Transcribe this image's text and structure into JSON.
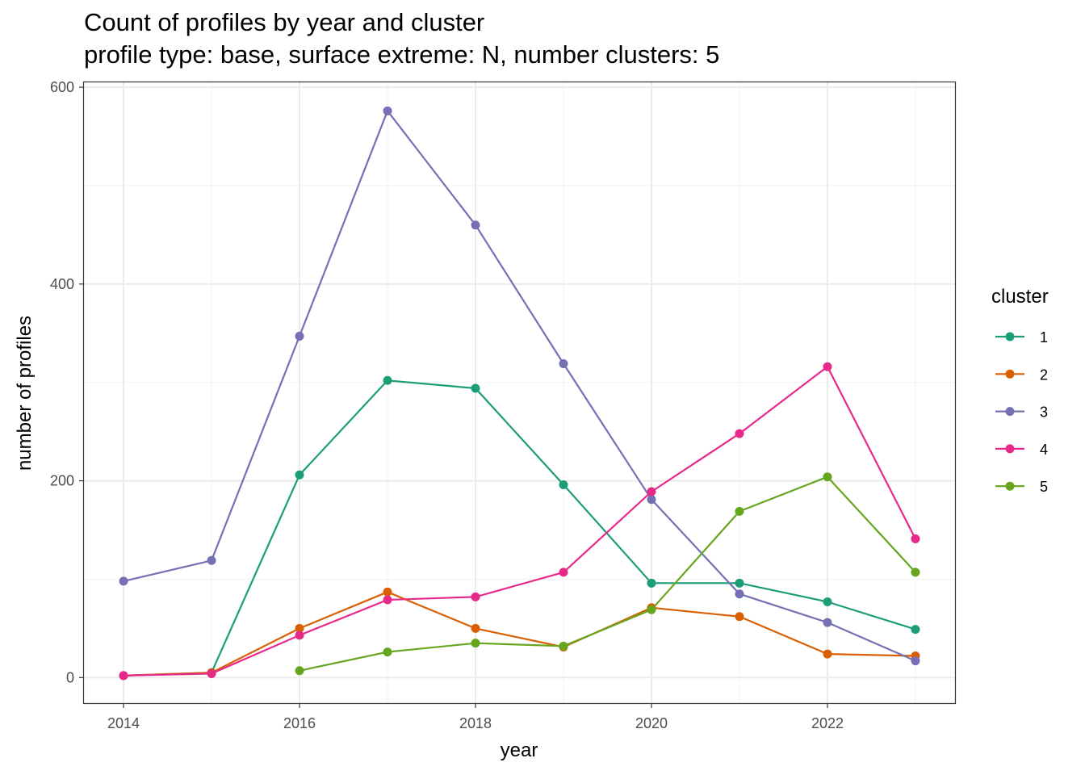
{
  "chart_data": {
    "type": "line",
    "title": "Count of profiles by year and cluster",
    "subtitle": "profile type: base, surface extreme: N, number clusters: 5",
    "xlabel": "year",
    "ylabel": "number of profiles",
    "xlim": [
      2013.55,
      2023.45
    ],
    "ylim": [
      -26,
      605
    ],
    "xticks": [
      2014,
      2016,
      2018,
      2020,
      2022
    ],
    "yticks": [
      0,
      200,
      400,
      600
    ],
    "grid": true,
    "legend_title": "cluster",
    "legend_position": "right",
    "series": [
      {
        "name": "1",
        "color": "#1b9e77",
        "x": [
          2014,
          2015,
          2016,
          2017,
          2018,
          2019,
          2020,
          2021,
          2022,
          2023
        ],
        "y": [
          2,
          5,
          206,
          302,
          294,
          196,
          96,
          96,
          77,
          49
        ]
      },
      {
        "name": "2",
        "color": "#d95f02",
        "x": [
          2014,
          2015,
          2016,
          2017,
          2018,
          2019,
          2020,
          2021,
          2022,
          2023
        ],
        "y": [
          2,
          5,
          50,
          87,
          50,
          31,
          71,
          62,
          24,
          22
        ]
      },
      {
        "name": "3",
        "color": "#7570b3",
        "x": [
          2014,
          2015,
          2016,
          2017,
          2018,
          2019,
          2020,
          2021,
          2022,
          2023
        ],
        "y": [
          98,
          119,
          347,
          576,
          460,
          319,
          181,
          85,
          56,
          17
        ]
      },
      {
        "name": "4",
        "color": "#e7298a",
        "x": [
          2014,
          2015,
          2016,
          2017,
          2018,
          2019,
          2020,
          2021,
          2022,
          2023
        ],
        "y": [
          2,
          4,
          43,
          79,
          82,
          107,
          189,
          248,
          316,
          141
        ]
      },
      {
        "name": "5",
        "color": "#66a61e",
        "x": [
          2016,
          2017,
          2018,
          2019,
          2020,
          2021,
          2022,
          2023
        ],
        "y": [
          7,
          26,
          35,
          32,
          69,
          169,
          204,
          107
        ]
      }
    ]
  }
}
